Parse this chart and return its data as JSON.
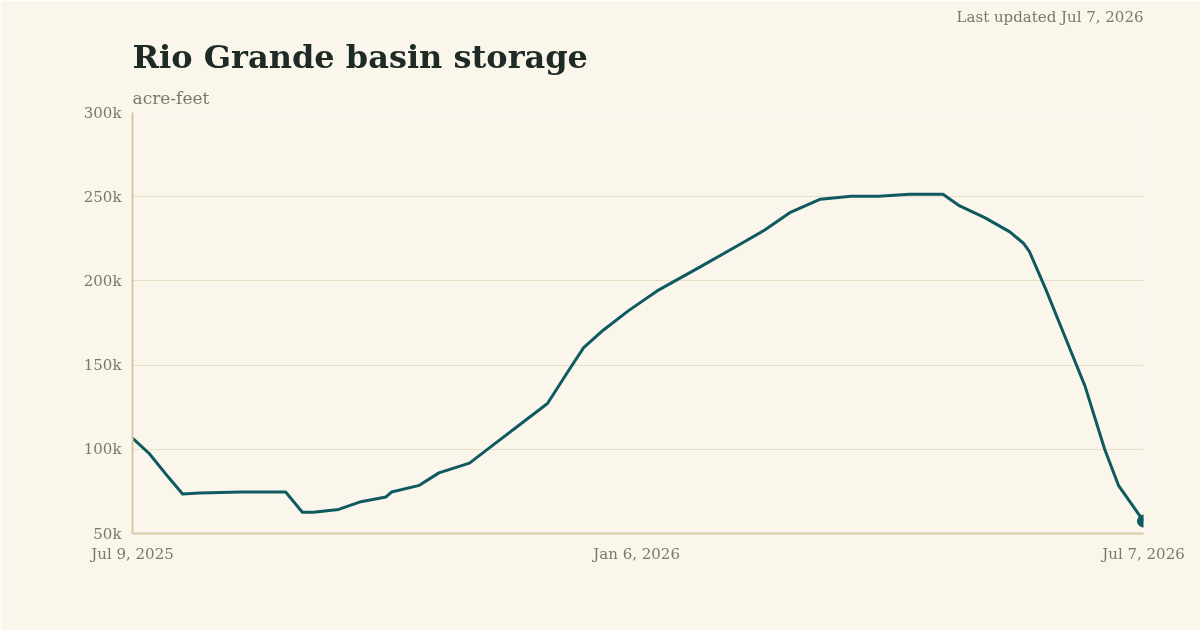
{
  "chart_data": {
    "type": "line",
    "title": "Rio Grande basin storage",
    "subtitle": "acre-feet",
    "annotations": [
      "Last updated Jul 7, 2026"
    ],
    "series": [
      {
        "color": "#0e5a60",
        "x": [
          "2025-07-09",
          "2025-07-15",
          "2025-07-22",
          "2025-07-27",
          "2025-08-02",
          "2025-08-17",
          "2025-09-02",
          "2025-09-08",
          "2025-09-12",
          "2025-09-21",
          "2025-09-29",
          "2025-10-08",
          "2025-10-10",
          "2025-10-20",
          "2025-10-27",
          "2025-11-07",
          "2025-11-16",
          "2025-11-25",
          "2025-12-05",
          "2025-12-13",
          "2025-12-18",
          "2025-12-25",
          "2026-01-03",
          "2026-01-14",
          "2026-01-29",
          "2026-02-12",
          "2026-02-21",
          "2026-03-02",
          "2026-03-13",
          "2026-03-24",
          "2026-04-03",
          "2026-04-14",
          "2026-04-26",
          "2026-05-02",
          "2026-05-11",
          "2026-05-20",
          "2026-05-25",
          "2026-05-27",
          "2026-06-02",
          "2026-06-09",
          "2026-06-16",
          "2026-06-23",
          "2026-06-28",
          "2026-07-07"
        ],
        "values": [
          106600,
          97500,
          83200,
          73500,
          74000,
          74600,
          74600,
          62600,
          62600,
          64300,
          68900,
          71700,
          74600,
          78600,
          86000,
          91800,
          103200,
          114600,
          127200,
          147800,
          160400,
          170700,
          182200,
          194700,
          208500,
          221600,
          230200,
          240500,
          248500,
          250200,
          250200,
          251400,
          251400,
          244500,
          237600,
          229100,
          222200,
          217600,
          194700,
          166100,
          137500,
          100300,
          78600,
          57400
        ]
      },
      {
        "type": "scatter",
        "marker": "circle",
        "color": "#0e5a60",
        "x": [
          "2026-07-07"
        ],
        "values": [
          57400
        ]
      }
    ],
    "xlim": [
      "2025-07-09",
      "2026-07-07"
    ],
    "xticks": [
      {
        "value": "2025-07-09",
        "label": "Jul 9, 2025"
      },
      {
        "value": "2026-01-06",
        "label": "Jan 6, 2026"
      },
      {
        "value": "2026-07-07",
        "label": "Jul 7, 2026"
      }
    ],
    "ylim": [
      50000,
      300000
    ],
    "yticks": [
      {
        "value": 50000,
        "label": "50k"
      },
      {
        "value": 100000,
        "label": "100k"
      },
      {
        "value": 150000,
        "label": "150k"
      },
      {
        "value": 200000,
        "label": "200k"
      },
      {
        "value": 250000,
        "label": "250k"
      },
      {
        "value": 300000,
        "label": "300k"
      }
    ],
    "grid": "y",
    "marker": "none",
    "line_style": "solid"
  }
}
